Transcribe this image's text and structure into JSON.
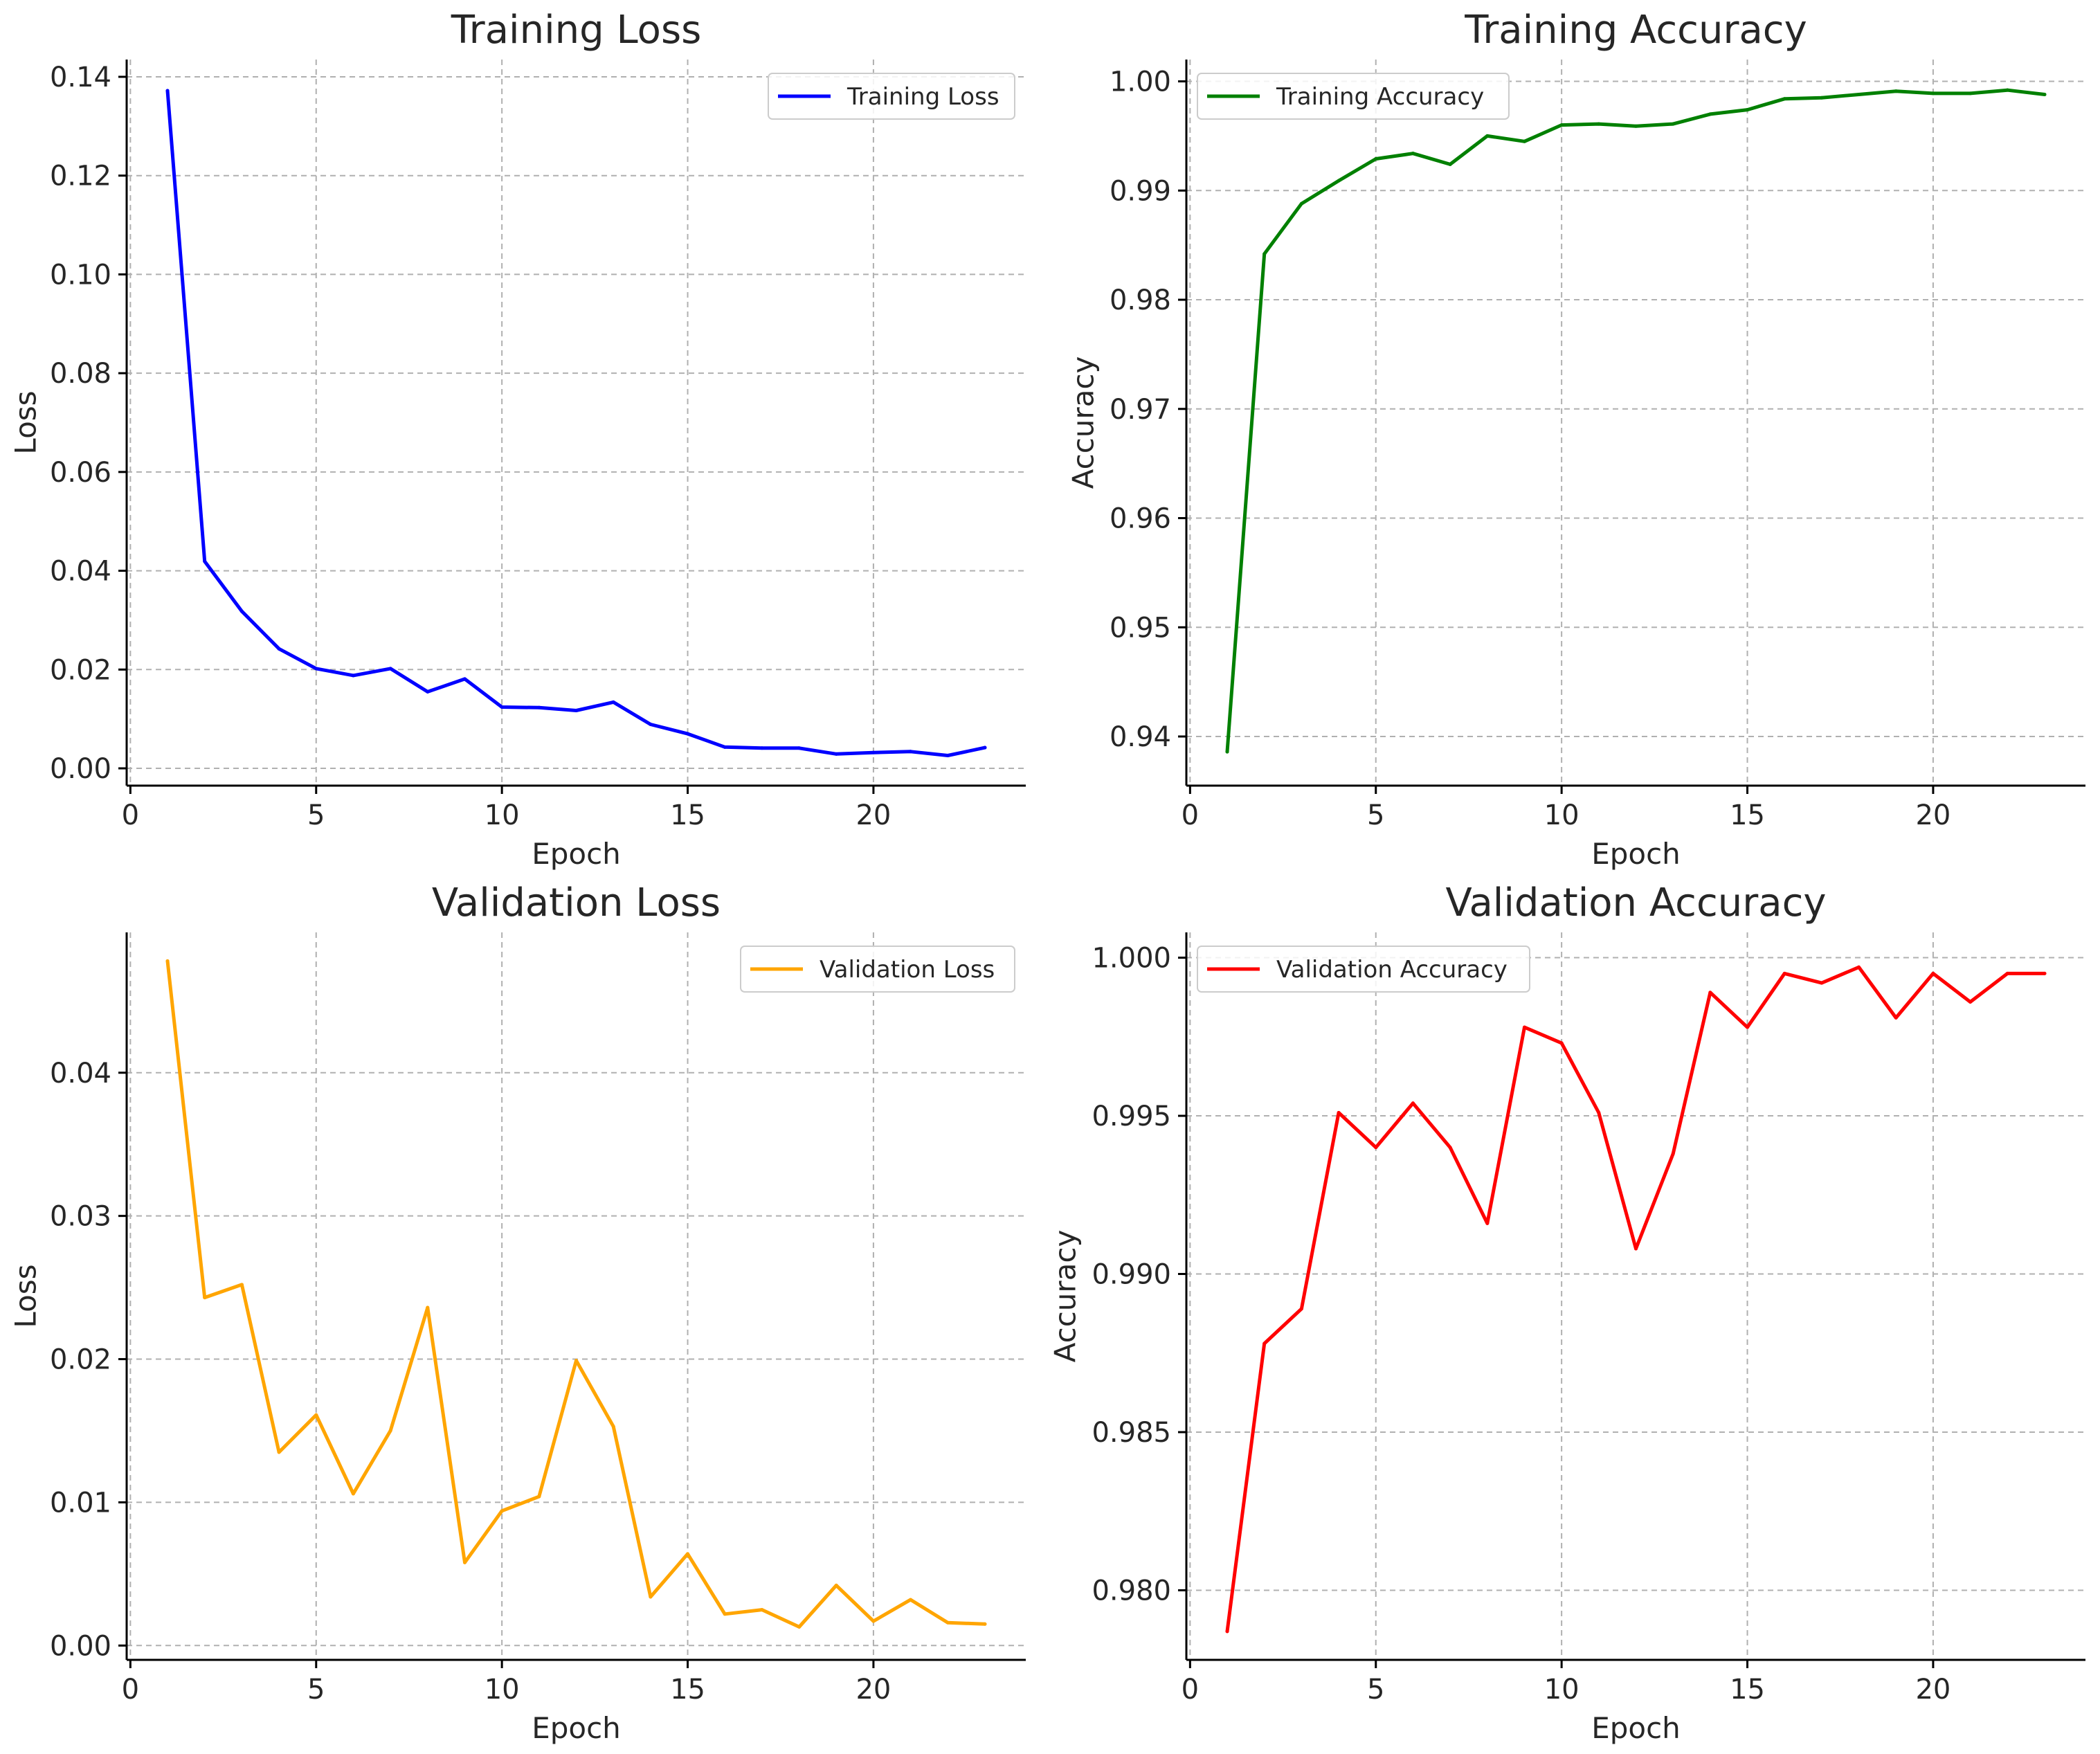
{
  "chart_data": [
    {
      "type": "line",
      "title": "Training Loss",
      "xlabel": "Epoch",
      "ylabel": "Loss",
      "xlim": [
        -0.1,
        24.1
      ],
      "ylim": [
        -0.0035,
        0.1435
      ],
      "xticks": [
        0,
        5,
        10,
        15,
        20
      ],
      "yticks": [
        "0.00",
        "0.02",
        "0.04",
        "0.06",
        "0.08",
        "0.10",
        "0.12",
        "0.14"
      ],
      "grid": true,
      "legend_position": "upper right",
      "x": [
        1,
        2,
        3,
        4,
        5,
        6,
        7,
        8,
        9,
        10,
        11,
        12,
        13,
        14,
        15,
        16,
        17,
        18,
        19,
        20,
        21,
        22,
        23
      ],
      "series": [
        {
          "name": "Training Loss",
          "color": "#0000ff",
          "values": [
            0.1372,
            0.0419,
            0.0318,
            0.0242,
            0.0202,
            0.0188,
            0.0202,
            0.0155,
            0.0181,
            0.0124,
            0.0123,
            0.0117,
            0.0134,
            0.0089,
            0.007,
            0.0043,
            0.0041,
            0.0041,
            0.0029,
            0.0032,
            0.0034,
            0.0026,
            0.0042
          ]
        }
      ]
    },
    {
      "type": "line",
      "title": "Training Accuracy",
      "xlabel": "Epoch",
      "ylabel": "Accuracy",
      "xlim": [
        -0.1,
        24.1
      ],
      "ylim": [
        0.9355,
        1.002
      ],
      "xticks": [
        0,
        5,
        10,
        15,
        20
      ],
      "yticks": [
        "0.94",
        "0.95",
        "0.96",
        "0.97",
        "0.98",
        "0.99",
        "1.00"
      ],
      "grid": true,
      "legend_position": "upper left",
      "x": [
        1,
        2,
        3,
        4,
        5,
        6,
        7,
        8,
        9,
        10,
        11,
        12,
        13,
        14,
        15,
        16,
        17,
        18,
        19,
        20,
        21,
        22,
        23
      ],
      "series": [
        {
          "name": "Training Accuracy",
          "color": "#008000",
          "values": [
            0.9386,
            0.9842,
            0.9888,
            0.9909,
            0.9929,
            0.9934,
            0.9924,
            0.995,
            0.9945,
            0.996,
            0.9961,
            0.9959,
            0.9961,
            0.997,
            0.9974,
            0.9984,
            0.9985,
            0.9988,
            0.9991,
            0.9989,
            0.9989,
            0.9992,
            0.9988
          ]
        }
      ]
    },
    {
      "type": "line",
      "title": "Validation Loss",
      "xlabel": "Epoch",
      "ylabel": "Loss",
      "xlim": [
        -0.1,
        24.1
      ],
      "ylim": [
        -0.001,
        0.0498
      ],
      "xticks": [
        0,
        5,
        10,
        15,
        20
      ],
      "yticks": [
        "0.00",
        "0.01",
        "0.02",
        "0.03",
        "0.04"
      ],
      "grid": true,
      "legend_position": "upper right",
      "x": [
        1,
        2,
        3,
        4,
        5,
        6,
        7,
        8,
        9,
        10,
        11,
        12,
        13,
        14,
        15,
        16,
        17,
        18,
        19,
        20,
        21,
        22,
        23
      ],
      "series": [
        {
          "name": "Validation Loss",
          "color": "#ffa500",
          "values": [
            0.0478,
            0.0243,
            0.0252,
            0.0135,
            0.0161,
            0.0106,
            0.015,
            0.0236,
            0.0058,
            0.0094,
            0.0104,
            0.0199,
            0.0153,
            0.0034,
            0.0064,
            0.0022,
            0.0025,
            0.0013,
            0.0042,
            0.0017,
            0.0032,
            0.0016,
            0.0015
          ]
        }
      ]
    },
    {
      "type": "line",
      "title": "Validation Accuracy",
      "xlabel": "Epoch",
      "ylabel": "Accuracy",
      "xlim": [
        -0.1,
        24.1
      ],
      "ylim": [
        0.9778,
        1.0008
      ],
      "xticks": [
        0,
        5,
        10,
        15,
        20
      ],
      "yticks": [
        "0.980",
        "0.985",
        "0.990",
        "0.995",
        "1.000"
      ],
      "grid": true,
      "legend_position": "upper left",
      "x": [
        1,
        2,
        3,
        4,
        5,
        6,
        7,
        8,
        9,
        10,
        11,
        12,
        13,
        14,
        15,
        16,
        17,
        18,
        19,
        20,
        21,
        22,
        23
      ],
      "series": [
        {
          "name": "Validation Accuracy",
          "color": "#ff0000",
          "values": [
            0.9787,
            0.9878,
            0.9889,
            0.9951,
            0.994,
            0.9954,
            0.994,
            0.9916,
            0.9978,
            0.9973,
            0.9951,
            0.9908,
            0.9938,
            0.9989,
            0.9978,
            0.9995,
            0.9992,
            0.9997,
            0.9981,
            0.9995,
            0.9986,
            0.9995,
            0.9995
          ]
        }
      ]
    }
  ]
}
